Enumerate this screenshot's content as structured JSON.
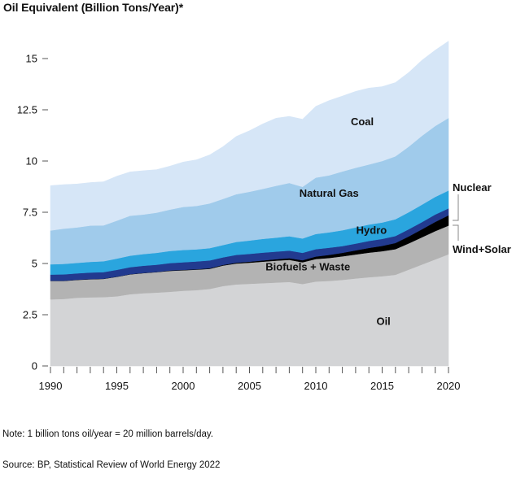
{
  "title": "Oil Equivalent (Billion Tons/Year)*",
  "note": "Note: 1 billion tons oil/year = 20 million barrels/day.",
  "source": "Source: BP, Statistical Review of World Energy 2022",
  "chart_data": {
    "type": "area",
    "stacked": true,
    "title": "Oil Equivalent (Billion Tons/Year)*",
    "xlabel": "",
    "ylabel": "Oil Equivalent (Billion Tons/Year)*",
    "x": [
      1990,
      1991,
      1992,
      1993,
      1994,
      1995,
      1996,
      1997,
      1998,
      1999,
      2000,
      2001,
      2002,
      2003,
      2004,
      2005,
      2006,
      2007,
      2008,
      2009,
      2010,
      2011,
      2012,
      2013,
      2014,
      2015,
      2016,
      2017,
      2018,
      2019,
      2020
    ],
    "xlim": [
      1990,
      2020
    ],
    "ylim": [
      0,
      15
    ],
    "x_ticks": [
      1990,
      1995,
      2000,
      2005,
      2010,
      2015,
      2020
    ],
    "y_ticks": [
      0,
      2.5,
      5,
      7.5,
      10,
      12.5,
      15
    ],
    "y_tick_labels": [
      "0",
      "2.5",
      "5",
      "7.5",
      "10",
      "12.5",
      "15"
    ],
    "grid": false,
    "legend": "inline labels",
    "series": [
      {
        "name": "Oil",
        "label": "Oil",
        "color": "#d3d4d6",
        "values": [
          3.25,
          3.27,
          3.33,
          3.35,
          3.36,
          3.4,
          3.5,
          3.55,
          3.58,
          3.62,
          3.67,
          3.7,
          3.76,
          3.9,
          3.98,
          4.01,
          4.04,
          4.07,
          4.1,
          4.0,
          4.12,
          4.15,
          4.2,
          4.27,
          4.33,
          4.38,
          4.45,
          4.7,
          4.95,
          5.2,
          5.45
        ]
      },
      {
        "name": "Biofuels + Waste",
        "label": "Biofuels + Waste",
        "color": "#b3b3b3",
        "values": [
          0.9,
          0.88,
          0.87,
          0.88,
          0.89,
          0.95,
          0.97,
          0.98,
          1.0,
          1.02,
          1.0,
          1.0,
          0.98,
          1.0,
          1.02,
          1.03,
          1.05,
          1.07,
          1.08,
          1.06,
          1.1,
          1.12,
          1.15,
          1.17,
          1.2,
          1.22,
          1.25,
          1.28,
          1.33,
          1.38,
          1.4
        ]
      },
      {
        "name": "Wind+Solar",
        "label": "Wind+Solar",
        "color": "#000000",
        "values": [
          0.01,
          0.01,
          0.01,
          0.01,
          0.01,
          0.01,
          0.01,
          0.01,
          0.01,
          0.02,
          0.02,
          0.02,
          0.03,
          0.03,
          0.04,
          0.05,
          0.06,
          0.07,
          0.08,
          0.1,
          0.12,
          0.15,
          0.17,
          0.2,
          0.23,
          0.26,
          0.3,
          0.34,
          0.39,
          0.45,
          0.5
        ]
      },
      {
        "name": "Nuclear",
        "label": "Nuclear",
        "color": "#223a8f",
        "values": [
          0.3,
          0.31,
          0.31,
          0.32,
          0.32,
          0.33,
          0.34,
          0.35,
          0.35,
          0.36,
          0.37,
          0.38,
          0.38,
          0.37,
          0.38,
          0.38,
          0.38,
          0.37,
          0.37,
          0.36,
          0.36,
          0.35,
          0.33,
          0.33,
          0.34,
          0.34,
          0.34,
          0.35,
          0.35,
          0.36,
          0.34
        ]
      },
      {
        "name": "Hydro",
        "label": "Hydro",
        "color": "#2aa5de",
        "values": [
          0.5,
          0.51,
          0.51,
          0.52,
          0.53,
          0.55,
          0.56,
          0.57,
          0.58,
          0.59,
          0.6,
          0.59,
          0.6,
          0.6,
          0.63,
          0.65,
          0.67,
          0.68,
          0.7,
          0.7,
          0.74,
          0.75,
          0.77,
          0.79,
          0.8,
          0.8,
          0.82,
          0.83,
          0.85,
          0.86,
          0.87
        ]
      },
      {
        "name": "Natural Gas",
        "label": "Natural Gas",
        "color": "#a0cbeb",
        "values": [
          1.65,
          1.72,
          1.73,
          1.77,
          1.75,
          1.85,
          1.95,
          1.93,
          1.96,
          2.02,
          2.1,
          2.12,
          2.18,
          2.25,
          2.33,
          2.38,
          2.44,
          2.53,
          2.6,
          2.52,
          2.75,
          2.78,
          2.87,
          2.91,
          2.93,
          3.0,
          3.07,
          3.2,
          3.36,
          3.46,
          3.54
        ]
      },
      {
        "name": "Coal",
        "label": "Coal",
        "color": "#d6e6f7",
        "values": [
          2.19,
          2.15,
          2.12,
          2.1,
          2.13,
          2.17,
          2.14,
          2.14,
          2.1,
          2.12,
          2.19,
          2.25,
          2.37,
          2.55,
          2.82,
          2.98,
          3.17,
          3.3,
          3.25,
          3.3,
          3.48,
          3.65,
          3.68,
          3.73,
          3.73,
          3.63,
          3.6,
          3.62,
          3.69,
          3.7,
          3.75
        ]
      }
    ]
  }
}
